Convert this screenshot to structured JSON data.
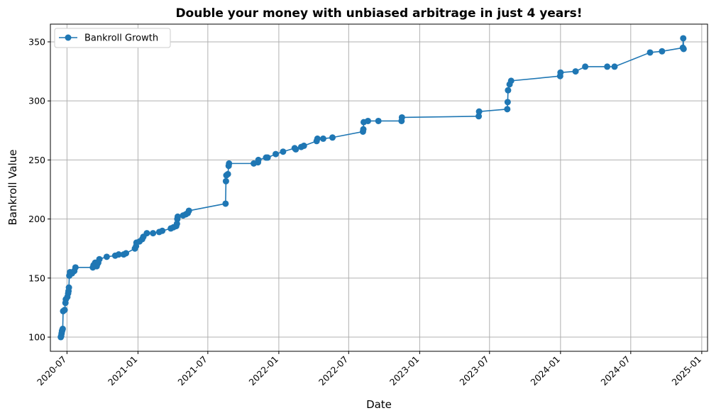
{
  "chart_data": {
    "type": "line",
    "title": "Double your money with unbiased arbitrage in just 4 years!",
    "xlabel": "Date",
    "ylabel": "Bankroll Value",
    "xlim": [
      "2020-05-19",
      "2025-01-16"
    ],
    "ylim": [
      88,
      365
    ],
    "xticks": [
      "2020-07",
      "2021-01",
      "2021-07",
      "2022-01",
      "2022-07",
      "2023-01",
      "2023-07",
      "2024-01",
      "2024-07",
      "2025-01"
    ],
    "yticks": [
      100,
      150,
      200,
      250,
      300,
      350
    ],
    "grid": true,
    "legend_position": "upper-left",
    "series": [
      {
        "name": "Bankroll Growth",
        "color": "#1f77b4",
        "marker": "circle",
        "points": [
          [
            "2020-06-15",
            100
          ],
          [
            "2020-06-16",
            101
          ],
          [
            "2020-06-17",
            103
          ],
          [
            "2020-06-18",
            105
          ],
          [
            "2020-06-19",
            106
          ],
          [
            "2020-06-20",
            107
          ],
          [
            "2020-06-21",
            122
          ],
          [
            "2020-06-25",
            123
          ],
          [
            "2020-06-27",
            129
          ],
          [
            "2020-06-28",
            132
          ],
          [
            "2020-07-02",
            134
          ],
          [
            "2020-07-04",
            137
          ],
          [
            "2020-07-05",
            139
          ],
          [
            "2020-07-06",
            142
          ],
          [
            "2020-07-07",
            152
          ],
          [
            "2020-07-09",
            155
          ],
          [
            "2020-07-14",
            154
          ],
          [
            "2020-07-20",
            156
          ],
          [
            "2020-07-23",
            159
          ],
          [
            "2020-09-06",
            159
          ],
          [
            "2020-09-08",
            161
          ],
          [
            "2020-09-12",
            163
          ],
          [
            "2020-09-16",
            160
          ],
          [
            "2020-09-18",
            162
          ],
          [
            "2020-09-20",
            163
          ],
          [
            "2020-09-23",
            166
          ],
          [
            "2020-10-12",
            168
          ],
          [
            "2020-11-03",
            169
          ],
          [
            "2020-11-12",
            170
          ],
          [
            "2020-11-25",
            170
          ],
          [
            "2020-12-01",
            171
          ],
          [
            "2020-12-24",
            175
          ],
          [
            "2020-12-27",
            177
          ],
          [
            "2020-12-28",
            180
          ],
          [
            "2021-01-05",
            181
          ],
          [
            "2021-01-12",
            183
          ],
          [
            "2021-01-15",
            185
          ],
          [
            "2021-01-24",
            188
          ],
          [
            "2021-02-09",
            188
          ],
          [
            "2021-02-25",
            189
          ],
          [
            "2021-03-05",
            190
          ],
          [
            "2021-03-27",
            192
          ],
          [
            "2021-04-03",
            193
          ],
          [
            "2021-04-10",
            194
          ],
          [
            "2021-04-12",
            196
          ],
          [
            "2021-04-13",
            200
          ],
          [
            "2021-04-14",
            202
          ],
          [
            "2021-04-28",
            203
          ],
          [
            "2021-05-05",
            204
          ],
          [
            "2021-05-10",
            205
          ],
          [
            "2021-05-13",
            207
          ],
          [
            "2021-08-16",
            213
          ],
          [
            "2021-08-17",
            232
          ],
          [
            "2021-08-18",
            237
          ],
          [
            "2021-08-22",
            238
          ],
          [
            "2021-08-24",
            245
          ],
          [
            "2021-08-25",
            247
          ],
          [
            "2021-10-28",
            247
          ],
          [
            "2021-11-08",
            248
          ],
          [
            "2021-11-09",
            250
          ],
          [
            "2021-11-29",
            252
          ],
          [
            "2021-12-03",
            252
          ],
          [
            "2021-12-24",
            255
          ],
          [
            "2022-01-12",
            257
          ],
          [
            "2022-02-11",
            260
          ],
          [
            "2022-02-14",
            259
          ],
          [
            "2022-02-28",
            261
          ],
          [
            "2022-03-07",
            262
          ],
          [
            "2022-04-09",
            266
          ],
          [
            "2022-04-11",
            268
          ],
          [
            "2022-04-26",
            268
          ],
          [
            "2022-05-20",
            269
          ],
          [
            "2022-08-07",
            274
          ],
          [
            "2022-08-08",
            276
          ],
          [
            "2022-08-09",
            282
          ],
          [
            "2022-08-20",
            283
          ],
          [
            "2022-09-16",
            283
          ],
          [
            "2022-11-15",
            283
          ],
          [
            "2022-11-16",
            286
          ],
          [
            "2023-06-03",
            287
          ],
          [
            "2023-06-04",
            291
          ],
          [
            "2023-08-16",
            293
          ],
          [
            "2023-08-17",
            299
          ],
          [
            "2023-08-18",
            309
          ],
          [
            "2023-08-22",
            314
          ],
          [
            "2023-08-26",
            317
          ],
          [
            "2023-12-31",
            321
          ],
          [
            "2024-01-01",
            324
          ],
          [
            "2024-02-09",
            325
          ],
          [
            "2024-03-05",
            329
          ],
          [
            "2024-05-01",
            329
          ],
          [
            "2024-05-20",
            329
          ],
          [
            "2024-08-20",
            341
          ],
          [
            "2024-09-20",
            342
          ],
          [
            "2024-11-13",
            345
          ],
          [
            "2024-11-14",
            353
          ],
          [
            "2024-11-15",
            344
          ]
        ]
      }
    ]
  }
}
